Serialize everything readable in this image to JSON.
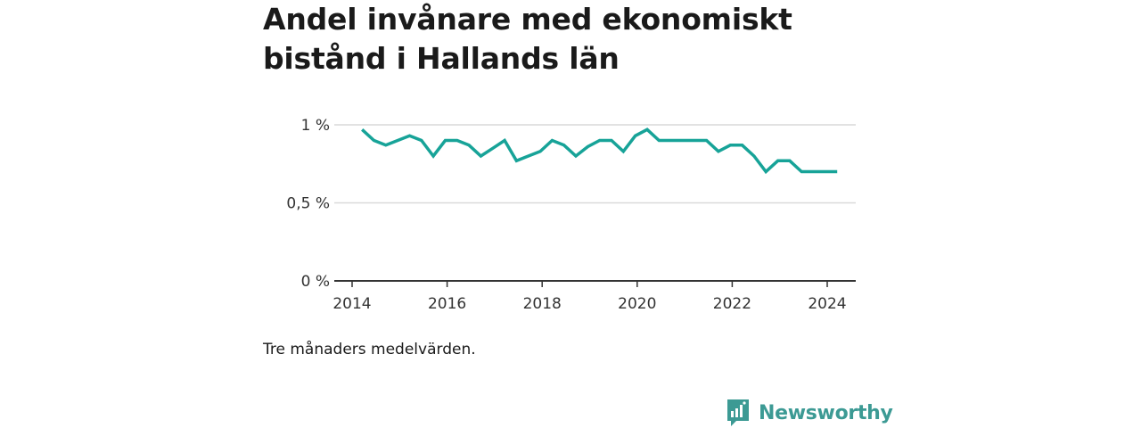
{
  "title_lines": [
    "Andel invånare med ekonomiskt",
    "bistånd i Hallands län"
  ],
  "caption": "Tre månaders medelvärden.",
  "brand": {
    "name": "Newsworthy",
    "color": "#3c9a94",
    "icon": "newsworthy-logo-icon"
  },
  "colors": {
    "line": "#17a398",
    "grid": "#d9d9d9",
    "axis": "#333333"
  },
  "chart_data": {
    "type": "line",
    "title": "Andel invånare med ekonomiskt bistånd i Hallands län",
    "xlabel": "",
    "ylabel": "",
    "ylim": [
      0,
      1.1
    ],
    "y_ticks": [
      0,
      0.5,
      1
    ],
    "y_tick_labels": [
      "0 %",
      "0,5 %",
      "1 %"
    ],
    "x_ticks": [
      2014,
      2016,
      2018,
      2020,
      2022,
      2024
    ],
    "x_tick_labels": [
      "2014",
      "2016",
      "2018",
      "2020",
      "2022",
      "2024"
    ],
    "grid": true,
    "series": [
      {
        "x": [
          2014.21,
          2014.46,
          2014.71,
          2014.96,
          2015.21,
          2015.46,
          2015.71,
          2015.96,
          2016.21,
          2016.46,
          2016.71,
          2016.96,
          2017.21,
          2017.46,
          2017.71,
          2017.96,
          2018.21,
          2018.46,
          2018.71,
          2018.96,
          2019.21,
          2019.46,
          2019.71,
          2019.96,
          2020.21,
          2020.46,
          2020.71,
          2020.96,
          2021.21,
          2021.46,
          2021.71,
          2021.96,
          2022.21,
          2022.46,
          2022.71,
          2022.96,
          2023.21,
          2023.46,
          2023.71,
          2023.96,
          2024.21
        ],
        "values": [
          0.97,
          0.9,
          0.87,
          0.9,
          0.93,
          0.9,
          0.8,
          0.9,
          0.9,
          0.87,
          0.8,
          0.85,
          0.9,
          0.77,
          0.8,
          0.83,
          0.9,
          0.87,
          0.8,
          0.86,
          0.9,
          0.9,
          0.83,
          0.93,
          0.97,
          0.9,
          0.9,
          0.9,
          0.9,
          0.9,
          0.83,
          0.87,
          0.87,
          0.8,
          0.7,
          0.77,
          0.77,
          0.7,
          0.7,
          0.7,
          0.7
        ]
      }
    ]
  }
}
